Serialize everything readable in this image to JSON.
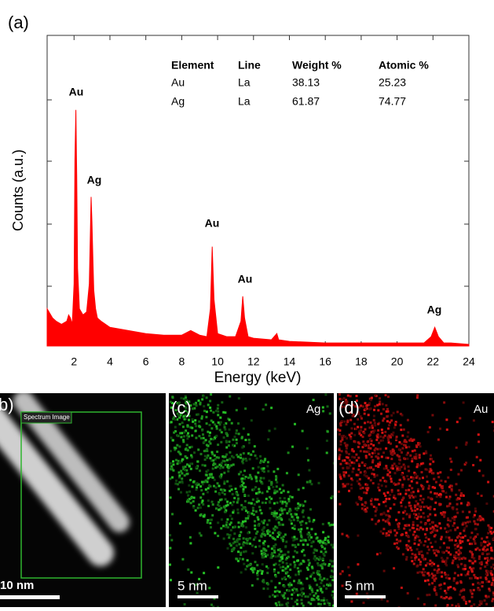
{
  "chart_data": {
    "type": "area",
    "panel_label": "(a)",
    "xlabel": "Energy (keV)",
    "ylabel": "Counts (a.u.)",
    "color": "#ff0000",
    "xlim": [
      0.5,
      24
    ],
    "ylim": [
      0,
      100
    ],
    "xticks": [
      2,
      4,
      6,
      8,
      10,
      12,
      14,
      16,
      18,
      20,
      22,
      24
    ],
    "x": [
      0.5,
      0.8,
      1.0,
      1.3,
      1.6,
      1.7,
      1.8,
      1.9,
      2.0,
      2.05,
      2.1,
      2.15,
      2.2,
      2.3,
      2.5,
      2.7,
      2.85,
      2.95,
      3.0,
      3.05,
      3.1,
      3.2,
      3.3,
      3.5,
      4,
      5,
      6,
      7,
      8,
      8.5,
      9,
      9.4,
      9.6,
      9.7,
      9.8,
      10,
      10.5,
      11,
      11.3,
      11.4,
      11.5,
      11.7,
      12,
      13,
      13.3,
      13.4,
      14,
      16,
      18,
      20,
      21.5,
      21.9,
      22.1,
      22.3,
      22.6,
      23,
      24
    ],
    "values": [
      12,
      9,
      8,
      7,
      8,
      10,
      9,
      7,
      20,
      60,
      76,
      55,
      25,
      12,
      10,
      11,
      20,
      48,
      40,
      28,
      18,
      12,
      9,
      8,
      6,
      5,
      4,
      3.5,
      3.5,
      5,
      3.5,
      3,
      12,
      32,
      15,
      4,
      3,
      3,
      8,
      16,
      9,
      3,
      2.5,
      2,
      4,
      2,
      1.5,
      1,
      1,
      1,
      1,
      3,
      6,
      3,
      1,
      1,
      0.5
    ],
    "annotations": [
      "Au",
      "Ag",
      "Au",
      "Au",
      "Ag"
    ],
    "table": {
      "header": [
        "Element",
        "Line",
        "Weight %",
        "Atomic %"
      ],
      "rows": [
        [
          "Au",
          "La",
          "38.13",
          "25.23"
        ],
        [
          "Ag",
          "La",
          "61.87",
          "74.77"
        ]
      ]
    }
  },
  "panels": [
    {
      "label": "b)",
      "box_label": "Spectrum Image",
      "scale_bar": "10 nm"
    },
    {
      "label": "(c)",
      "element": "Ag",
      "scale_bar": "5 nm"
    },
    {
      "label": "(d)",
      "element": "Au",
      "scale_bar": "5 nm"
    }
  ]
}
